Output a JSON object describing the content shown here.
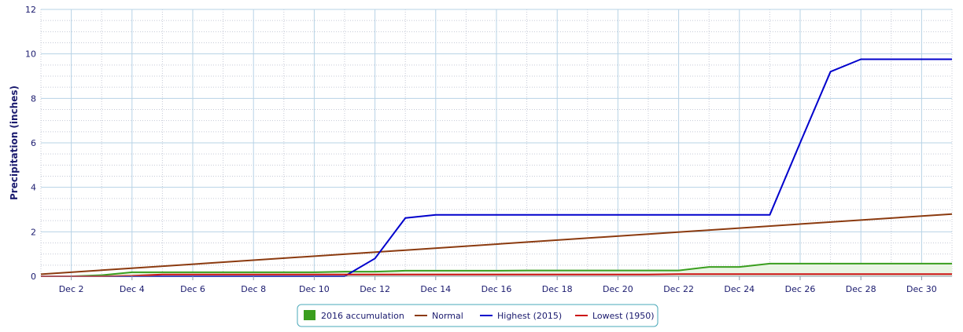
{
  "chart_data": {
    "type": "line",
    "ylabel": "Precipitation (inches)",
    "ylim": [
      0,
      12
    ],
    "y_ticks": [
      0,
      2,
      4,
      6,
      8,
      10,
      12
    ],
    "x_ticks": [
      2,
      4,
      6,
      8,
      10,
      12,
      14,
      16,
      18,
      20,
      22,
      24,
      26,
      28,
      30
    ],
    "x_tick_labels": [
      "Dec 2",
      "Dec 4",
      "Dec 6",
      "Dec 8",
      "Dec 10",
      "Dec 12",
      "Dec 14",
      "Dec 16",
      "Dec 18",
      "Dec 20",
      "Dec 22",
      "Dec 24",
      "Dec 26",
      "Dec 28",
      "Dec 30"
    ],
    "xlim": [
      1,
      31
    ],
    "grid": true,
    "legend_position": "bottom-center",
    "series": [
      {
        "name": "2016 accumulation",
        "type": "area",
        "color": "#3a9e1e",
        "fill": "#eaf5e4",
        "x": [
          1,
          2,
          3,
          4,
          5,
          6,
          7,
          8,
          9,
          10,
          11,
          12,
          13,
          14,
          15,
          16,
          17,
          18,
          19,
          20,
          21,
          22,
          23,
          24,
          25,
          26,
          27,
          28,
          29,
          30,
          31
        ],
        "values": [
          0,
          0,
          0.05,
          0.18,
          0.18,
          0.18,
          0.18,
          0.18,
          0.18,
          0.18,
          0.21,
          0.21,
          0.25,
          0.25,
          0.25,
          0.25,
          0.26,
          0.26,
          0.26,
          0.26,
          0.26,
          0.26,
          0.42,
          0.42,
          0.57,
          0.57,
          0.57,
          0.57,
          0.57,
          0.57,
          0.57
        ]
      },
      {
        "name": "Normal",
        "type": "line",
        "color": "#8b3a0f",
        "x": [
          1,
          31
        ],
        "values": [
          0.09,
          2.8
        ]
      },
      {
        "name": "Highest (2015)",
        "type": "line",
        "color": "#0000cc",
        "x": [
          1,
          2,
          3,
          4,
          5,
          6,
          7,
          8,
          9,
          10,
          11,
          12,
          13,
          14,
          15,
          16,
          17,
          18,
          19,
          20,
          21,
          22,
          23,
          24,
          25,
          26,
          27,
          28,
          29,
          30,
          31
        ],
        "values": [
          0,
          0,
          0,
          0,
          0,
          0,
          0,
          0,
          0,
          0,
          0,
          0.8,
          2.62,
          2.76,
          2.76,
          2.76,
          2.76,
          2.76,
          2.76,
          2.76,
          2.76,
          2.76,
          2.76,
          2.76,
          2.76,
          6.0,
          9.2,
          9.76,
          9.76,
          9.76,
          9.76
        ]
      },
      {
        "name": "Lowest (1950)",
        "type": "line",
        "color": "#cc1111",
        "x": [
          1,
          2,
          3,
          4,
          5,
          6,
          7,
          8,
          9,
          10,
          11,
          12,
          13,
          14,
          15,
          16,
          17,
          18,
          19,
          20,
          21,
          22,
          23,
          24,
          25,
          26,
          27,
          28,
          29,
          30,
          31
        ],
        "values": [
          0,
          0,
          0,
          0.02,
          0.08,
          0.08,
          0.08,
          0.08,
          0.08,
          0.08,
          0.08,
          0.08,
          0.08,
          0.08,
          0.08,
          0.08,
          0.08,
          0.08,
          0.08,
          0.08,
          0.08,
          0.1,
          0.1,
          0.1,
          0.1,
          0.1,
          0.1,
          0.1,
          0.1,
          0.1,
          0.1
        ]
      }
    ]
  }
}
